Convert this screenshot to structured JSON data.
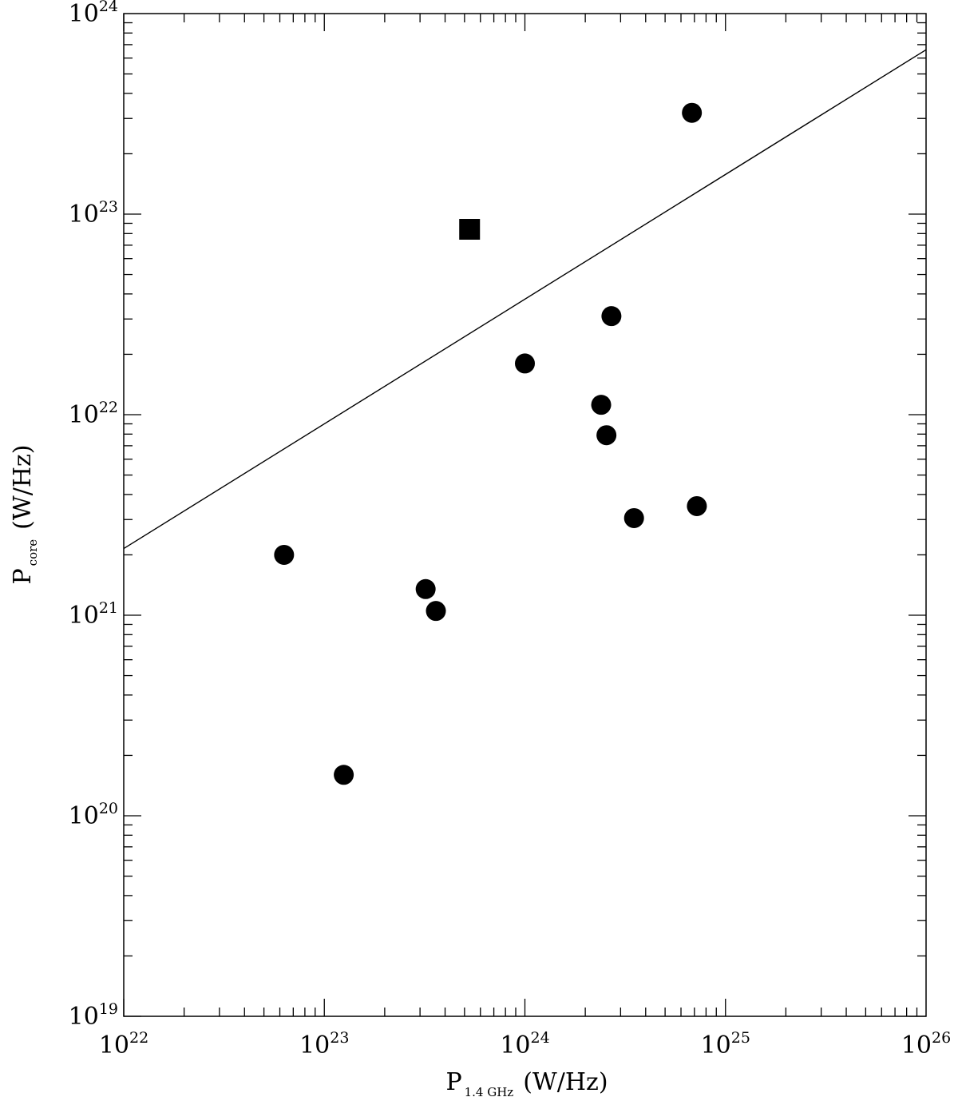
{
  "chart_data": {
    "type": "scatter",
    "title": "",
    "xlabel": {
      "main": "P",
      "subscript": "1.4 GHz",
      "unit": "(W/Hz)"
    },
    "ylabel": {
      "main": "P",
      "subscript": "core",
      "unit": "(W/Hz)"
    },
    "x_scale": "log",
    "y_scale": "log",
    "xlim": [
      1e+22,
      1e+26
    ],
    "ylim": [
      1e+19,
      1e+24
    ],
    "x_ticks": [
      {
        "base": "10",
        "exp": "22",
        "value": 1e+22
      },
      {
        "base": "10",
        "exp": "23",
        "value": 1e+23
      },
      {
        "base": "10",
        "exp": "24",
        "value": 1e+24
      },
      {
        "base": "10",
        "exp": "25",
        "value": 1e+25
      },
      {
        "base": "10",
        "exp": "26",
        "value": 1e+26
      }
    ],
    "y_ticks": [
      {
        "base": "10",
        "exp": "19",
        "value": 1e+19
      },
      {
        "base": "10",
        "exp": "20",
        "value": 1e+20
      },
      {
        "base": "10",
        "exp": "21",
        "value": 1e+21
      },
      {
        "base": "10",
        "exp": "22",
        "value": 1e+22
      },
      {
        "base": "10",
        "exp": "23",
        "value": 1e+23
      },
      {
        "base": "10",
        "exp": "24",
        "value": 1e+24
      }
    ],
    "grid": false,
    "series": [
      {
        "marker": "circle",
        "points": [
          {
            "x": 6.3e+22,
            "y": 2e+21
          },
          {
            "x": 1.25e+23,
            "y": 1.6e+20
          },
          {
            "x": 3.2e+23,
            "y": 1.35e+21
          },
          {
            "x": 3.6e+23,
            "y": 1.05e+21
          },
          {
            "x": 1e+24,
            "y": 1.8e+22
          },
          {
            "x": 2.4e+24,
            "y": 1.12e+22
          },
          {
            "x": 2.55e+24,
            "y": 7.9e+21
          },
          {
            "x": 2.7e+24,
            "y": 3.1e+22
          },
          {
            "x": 3.5e+24,
            "y": 3.05e+21
          },
          {
            "x": 6.8e+24,
            "y": 3.2e+23
          },
          {
            "x": 7.2e+24,
            "y": 3.5e+21
          }
        ]
      },
      {
        "marker": "square",
        "points": [
          {
            "x": 5.3e+23,
            "y": 8.4e+22
          }
        ]
      }
    ],
    "line": {
      "from": {
        "x": 1e+22,
        "y": 2.15e+21
      },
      "to": {
        "x": 1e+26,
        "y": 6.6e+23
      }
    },
    "colors": {
      "marker": "#000000",
      "line": "#000000",
      "background": "#ffffff"
    }
  }
}
